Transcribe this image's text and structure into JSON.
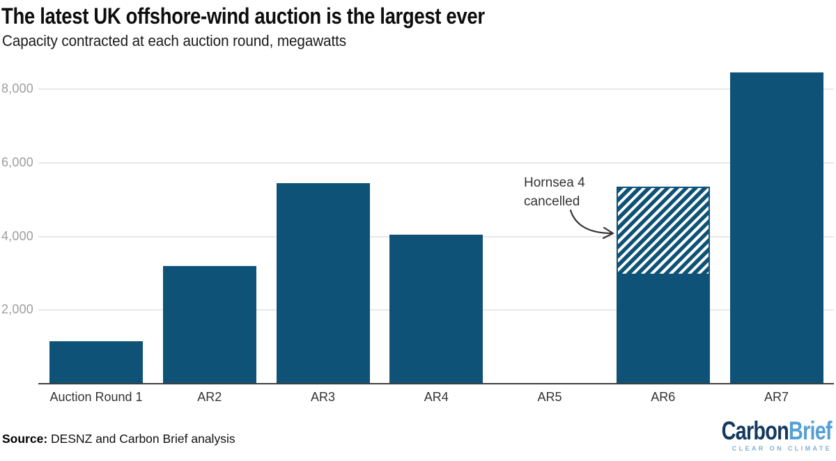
{
  "header": {
    "title": "The latest UK offshore-wind auction is the largest ever",
    "subtitle": "Capacity contracted at each auction round, megawatts"
  },
  "chart_data": {
    "type": "bar",
    "title": "The latest UK offshore-wind auction is the largest ever",
    "subtitle": "Capacity contracted at each auction round, megawatts",
    "xlabel": "",
    "ylabel": "megawatts",
    "categories": [
      "Auction Round 1",
      "AR2",
      "AR3",
      "AR4",
      "AR5",
      "AR6",
      "AR7"
    ],
    "stacked": true,
    "series": [
      {
        "name": "Capacity contracted",
        "style": "solid",
        "values": [
          1150,
          3200,
          5450,
          4050,
          0,
          2950,
          8450
        ]
      },
      {
        "name": "Hornsea 4 cancelled",
        "style": "hatched",
        "values": [
          0,
          0,
          0,
          0,
          0,
          2400,
          0
        ]
      }
    ],
    "ylim": [
      0,
      8800
    ],
    "yticks": [
      {
        "value": 2000,
        "label": "2,000"
      },
      {
        "value": 4000,
        "label": "4,000"
      },
      {
        "value": 6000,
        "label": "6,000"
      },
      {
        "value": 8000,
        "label": "8,000"
      }
    ],
    "grid": "horizontal",
    "legend": "none",
    "annotation": {
      "line1": "Hornsea 4",
      "line2": "cancelled",
      "target_category": "AR6"
    }
  },
  "footer": {
    "source_label": "Source:",
    "source_text": " DESNZ and Carbon Brief analysis",
    "logo": {
      "part1": "Carbon",
      "part2": "Brief",
      "tagline": "CLEAR ON CLIMATE"
    }
  },
  "colors": {
    "bar": "#0e5377",
    "gridline": "#e8e8e8",
    "axis_line": "#3e3e3e",
    "ytick_text": "#9d9d9d",
    "xtick_text": "#333333",
    "annotation_text": "#333333",
    "logo_navy": "#14395e",
    "logo_blue": "#55a0d5",
    "logo_tagline": "#7db1d9"
  }
}
